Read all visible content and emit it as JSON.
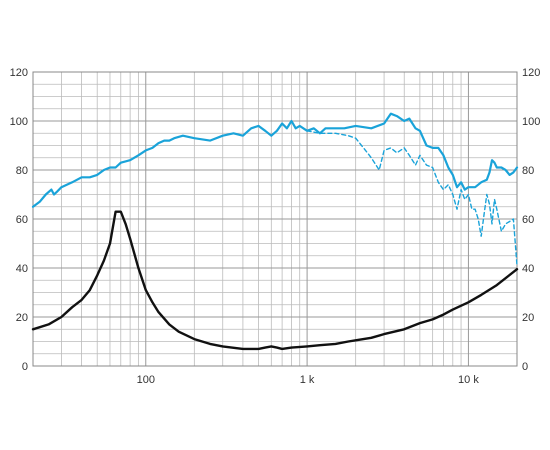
{
  "chart_data": {
    "type": "line",
    "title": "",
    "xlabel": "",
    "ylabel": "",
    "x_scale": "log",
    "xlim": [
      20,
      20000
    ],
    "ylim": [
      0,
      120
    ],
    "grid": true,
    "x_tick_labels": [
      {
        "value": 100,
        "label": "100"
      },
      {
        "value": 1000,
        "label": "1 k"
      },
      {
        "value": 10000,
        "label": "10 k"
      }
    ],
    "y_ticks": [
      0,
      20,
      40,
      60,
      80,
      100,
      120
    ],
    "colors": {
      "frequency_response_on_axis": "#1aa3d9",
      "frequency_response_off_axis": "#1aa3d9",
      "impedance": "#111111",
      "grid": "#bbbbbb",
      "axis": "#888888"
    },
    "series": [
      {
        "id": "on_axis",
        "style": "solid",
        "points": [
          [
            20,
            65
          ],
          [
            22,
            67
          ],
          [
            24,
            70
          ],
          [
            26,
            72
          ],
          [
            27,
            70
          ],
          [
            28,
            71
          ],
          [
            30,
            73
          ],
          [
            35,
            75
          ],
          [
            40,
            77
          ],
          [
            45,
            77
          ],
          [
            50,
            78
          ],
          [
            55,
            80
          ],
          [
            60,
            81
          ],
          [
            65,
            81
          ],
          [
            70,
            83
          ],
          [
            80,
            84
          ],
          [
            90,
            86
          ],
          [
            100,
            88
          ],
          [
            110,
            89
          ],
          [
            120,
            91
          ],
          [
            130,
            92
          ],
          [
            140,
            92
          ],
          [
            150,
            93
          ],
          [
            170,
            94
          ],
          [
            200,
            93
          ],
          [
            250,
            92
          ],
          [
            300,
            94
          ],
          [
            350,
            95
          ],
          [
            400,
            94
          ],
          [
            450,
            97
          ],
          [
            500,
            98
          ],
          [
            550,
            96
          ],
          [
            600,
            94
          ],
          [
            650,
            96
          ],
          [
            700,
            99
          ],
          [
            750,
            97
          ],
          [
            800,
            100
          ],
          [
            850,
            97
          ],
          [
            900,
            98
          ],
          [
            1000,
            96
          ],
          [
            1100,
            97
          ],
          [
            1200,
            95
          ],
          [
            1300,
            97
          ],
          [
            1500,
            97
          ],
          [
            1700,
            97
          ],
          [
            2000,
            98
          ],
          [
            2500,
            97
          ],
          [
            3000,
            99
          ],
          [
            3300,
            103
          ],
          [
            3600,
            102
          ],
          [
            4000,
            100
          ],
          [
            4300,
            101
          ],
          [
            4700,
            97
          ],
          [
            5000,
            96
          ],
          [
            5500,
            90
          ],
          [
            6000,
            89
          ],
          [
            6500,
            89
          ],
          [
            7000,
            86
          ],
          [
            7500,
            81
          ],
          [
            8000,
            78
          ],
          [
            8500,
            73
          ],
          [
            9000,
            75
          ],
          [
            9500,
            72
          ],
          [
            10000,
            73
          ],
          [
            11000,
            73
          ],
          [
            12000,
            75
          ],
          [
            13000,
            76
          ],
          [
            13500,
            79
          ],
          [
            14000,
            84
          ],
          [
            14500,
            83
          ],
          [
            15000,
            81
          ],
          [
            16000,
            81
          ],
          [
            17000,
            80
          ],
          [
            18000,
            78
          ],
          [
            19000,
            79
          ],
          [
            20000,
            81
          ]
        ]
      },
      {
        "id": "off_axis",
        "style": "dashed",
        "points": [
          [
            1000,
            96
          ],
          [
            1200,
            95
          ],
          [
            1500,
            95
          ],
          [
            1800,
            94
          ],
          [
            2000,
            93
          ],
          [
            2300,
            88
          ],
          [
            2500,
            85
          ],
          [
            2800,
            80
          ],
          [
            3000,
            88
          ],
          [
            3300,
            89
          ],
          [
            3600,
            87
          ],
          [
            4000,
            89
          ],
          [
            4300,
            86
          ],
          [
            4700,
            82
          ],
          [
            5000,
            86
          ],
          [
            5500,
            82
          ],
          [
            6000,
            81
          ],
          [
            6500,
            75
          ],
          [
            7000,
            72
          ],
          [
            7500,
            74
          ],
          [
            8000,
            70
          ],
          [
            8500,
            64
          ],
          [
            9000,
            72
          ],
          [
            9500,
            68
          ],
          [
            10000,
            70
          ],
          [
            10500,
            64
          ],
          [
            11000,
            64
          ],
          [
            11500,
            60
          ],
          [
            12000,
            53
          ],
          [
            12500,
            62
          ],
          [
            13000,
            70
          ],
          [
            13500,
            66
          ],
          [
            14000,
            58
          ],
          [
            14500,
            68
          ],
          [
            15000,
            64
          ],
          [
            16000,
            55
          ],
          [
            17000,
            58
          ],
          [
            18000,
            59
          ],
          [
            19000,
            60
          ],
          [
            20000,
            41
          ]
        ]
      },
      {
        "id": "impedance",
        "style": "solid",
        "points": [
          [
            20,
            15
          ],
          [
            25,
            17
          ],
          [
            30,
            20
          ],
          [
            35,
            24
          ],
          [
            40,
            27
          ],
          [
            45,
            31
          ],
          [
            50,
            37
          ],
          [
            55,
            43
          ],
          [
            60,
            50
          ],
          [
            65,
            63
          ],
          [
            70,
            63
          ],
          [
            75,
            58
          ],
          [
            80,
            52
          ],
          [
            90,
            40
          ],
          [
            100,
            31
          ],
          [
            110,
            26
          ],
          [
            120,
            22
          ],
          [
            140,
            17
          ],
          [
            160,
            14
          ],
          [
            200,
            11
          ],
          [
            250,
            9
          ],
          [
            300,
            8
          ],
          [
            400,
            7
          ],
          [
            500,
            7
          ],
          [
            550,
            7.5
          ],
          [
            600,
            8
          ],
          [
            650,
            7.5
          ],
          [
            700,
            7
          ],
          [
            800,
            7.5
          ],
          [
            1000,
            8
          ],
          [
            1200,
            8.5
          ],
          [
            1500,
            9
          ],
          [
            1800,
            10
          ],
          [
            2000,
            10.5
          ],
          [
            2500,
            11.5
          ],
          [
            3000,
            13
          ],
          [
            4000,
            15
          ],
          [
            5000,
            17.5
          ],
          [
            6000,
            19
          ],
          [
            7000,
            21
          ],
          [
            8000,
            23
          ],
          [
            10000,
            26
          ],
          [
            12000,
            29
          ],
          [
            15000,
            33
          ],
          [
            20000,
            39.5
          ]
        ]
      }
    ]
  }
}
